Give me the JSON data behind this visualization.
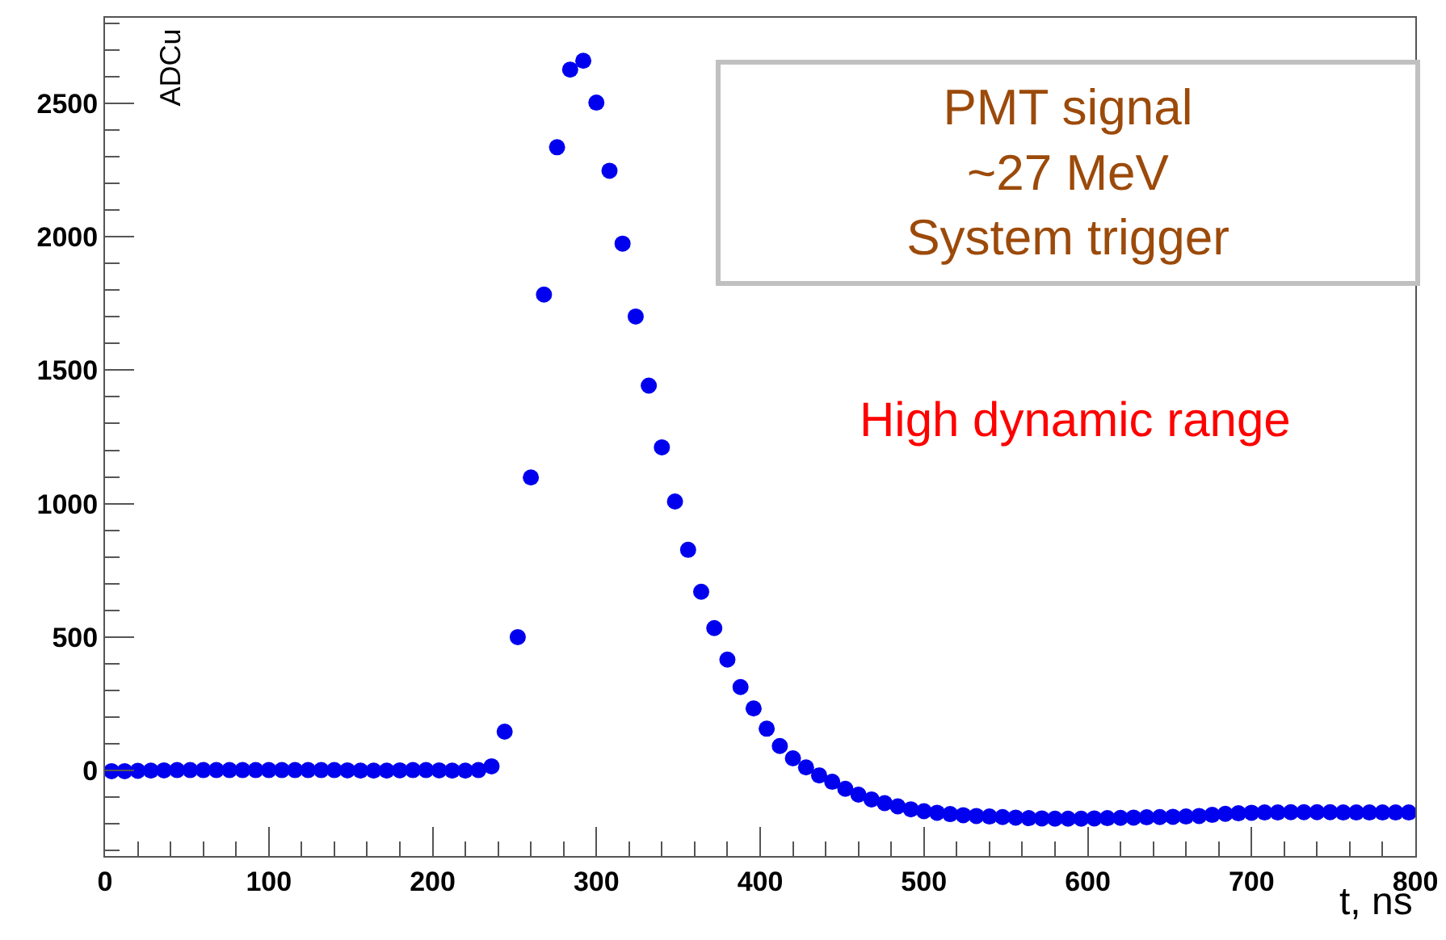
{
  "chart_data": {
    "type": "scatter",
    "xlabel": "t, ns",
    "ylabel": "ADCu",
    "annotations": [
      "PMT signal\n~27 MeV\nSystem trigger",
      "High dynamic range"
    ],
    "x": [
      4,
      12,
      20,
      28,
      36,
      44,
      52,
      60,
      68,
      76,
      84,
      92,
      100,
      108,
      116,
      124,
      132,
      140,
      148,
      156,
      164,
      172,
      180,
      188,
      196,
      204,
      212,
      220,
      228,
      236,
      244,
      252,
      260,
      268,
      276,
      284,
      292,
      300,
      308,
      316,
      324,
      332,
      340,
      348,
      356,
      364,
      372,
      380,
      388,
      396,
      404,
      412,
      420,
      428,
      436,
      444,
      452,
      460,
      468,
      476,
      484,
      492,
      500,
      508,
      516,
      524,
      532,
      540,
      548,
      556,
      564,
      572,
      580,
      588,
      596,
      604,
      612,
      620,
      628,
      636,
      644,
      652,
      660,
      668,
      676,
      684,
      692,
      700,
      708,
      716,
      724,
      732,
      740,
      748,
      756,
      764,
      772,
      780,
      788,
      796
    ],
    "series": [
      {
        "color": "#0000ee",
        "values": [
          -2,
          -2,
          -1,
          0,
          1,
          2,
          2,
          2,
          2,
          2,
          2,
          2,
          2,
          2,
          2,
          2,
          2,
          2,
          1,
          0,
          0,
          0,
          1,
          2,
          2,
          1,
          0,
          0,
          2,
          16,
          146,
          500,
          1098,
          1783,
          2335,
          2626,
          2659,
          2502,
          2247,
          1974,
          1701,
          1442,
          1211,
          1008,
          827,
          670,
          534,
          416,
          313,
          233,
          157,
          92,
          46,
          12,
          -18,
          -42,
          -68,
          -90,
          -108,
          -122,
          -134,
          -145,
          -152,
          -158,
          -163,
          -167,
          -170,
          -172,
          -174,
          -176,
          -178,
          -179,
          -180,
          -180,
          -180,
          -179,
          -178,
          -177,
          -176,
          -175,
          -174,
          -173,
          -172,
          -170,
          -166,
          -162,
          -160,
          -158,
          -157,
          -157,
          -156,
          -156,
          -156,
          -156,
          -157,
          -157,
          -157,
          -157,
          -157,
          -157
        ]
      }
    ],
    "xlim": [
      0,
      800
    ],
    "xticks": [
      0,
      100,
      200,
      300,
      400,
      500,
      600,
      700,
      800
    ],
    "ylim": [
      -320,
      2820
    ],
    "yticks": [
      0,
      500,
      1000,
      1500,
      2000,
      2500
    ],
    "marker": "circle",
    "grid": false,
    "legend": false
  }
}
